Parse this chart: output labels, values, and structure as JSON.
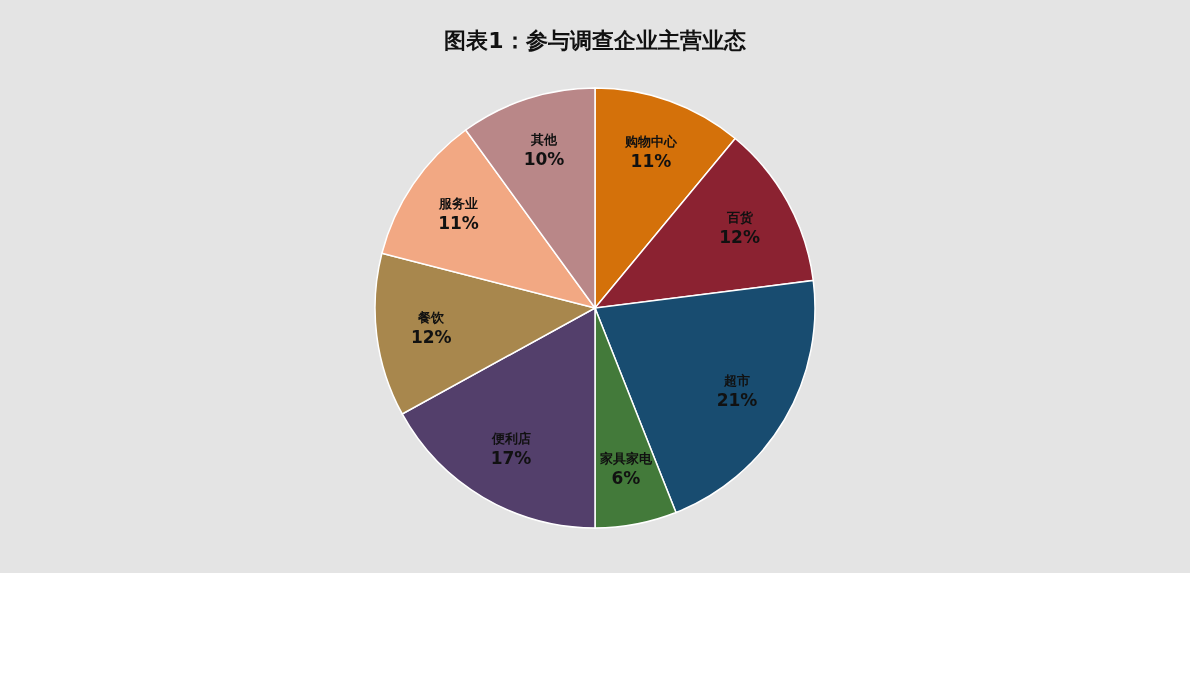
{
  "chart_data": {
    "type": "pie",
    "title": "图表1：参与调查企业主营业态",
    "categories": [
      "购物中心",
      "百货",
      "超市",
      "家具家电",
      "便利店",
      "餐饮",
      "服务业",
      "其他"
    ],
    "values": [
      11,
      12,
      21,
      6,
      17,
      12,
      11,
      10
    ],
    "value_labels": [
      "11%",
      "12%",
      "21%",
      "6%",
      "17%",
      "12%",
      "11%",
      "10%"
    ],
    "colors": [
      "#d4710a",
      "#8b2231",
      "#184c70",
      "#437a3a",
      "#533f6b",
      "#a8874d",
      "#f2a883",
      "#b98788"
    ],
    "legend": false
  }
}
